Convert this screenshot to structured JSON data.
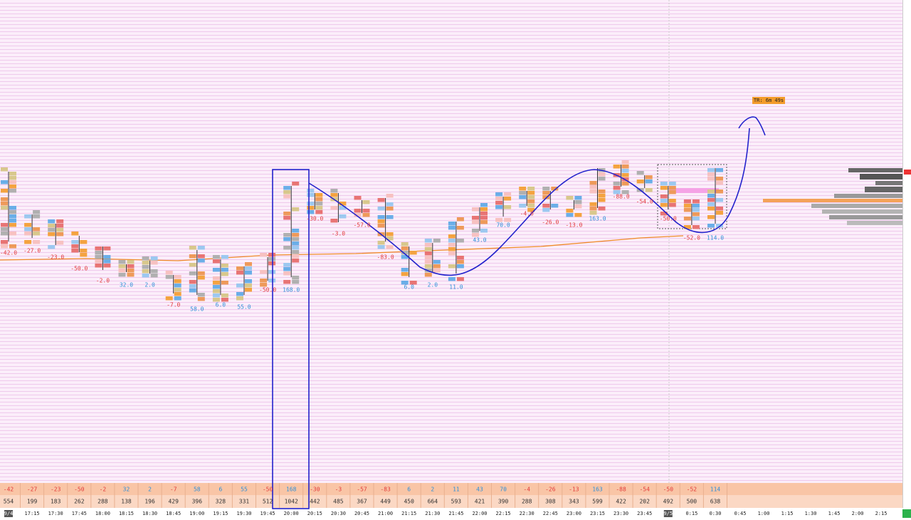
{
  "timer": "TR: 6m 49s",
  "bars": [
    {
      "time": "9/4",
      "delta": "-42",
      "volume": "554",
      "delta_label": "-42.0"
    },
    {
      "time": "17:15",
      "delta": "-27",
      "volume": "199",
      "delta_label": "-27.0"
    },
    {
      "time": "17:30",
      "delta": "-23",
      "volume": "183",
      "delta_label": "-23.0"
    },
    {
      "time": "17:45",
      "delta": "-50",
      "volume": "262",
      "delta_label": "-50.0"
    },
    {
      "time": "18:00",
      "delta": "-2",
      "volume": "288",
      "delta_label": "-2.0"
    },
    {
      "time": "18:15",
      "delta": "32",
      "volume": "138",
      "delta_label": "32.0"
    },
    {
      "time": "18:30",
      "delta": "2",
      "volume": "196",
      "delta_label": "2.0"
    },
    {
      "time": "18:45",
      "delta": "-7",
      "volume": "429",
      "delta_label": "-7.0"
    },
    {
      "time": "19:00",
      "delta": "58",
      "volume": "396",
      "delta_label": "58.0"
    },
    {
      "time": "19:15",
      "delta": "6",
      "volume": "328",
      "delta_label": "6.0"
    },
    {
      "time": "19:30",
      "delta": "55",
      "volume": "331",
      "delta_label": "55.0"
    },
    {
      "time": "19:45",
      "delta": "-50",
      "volume": "512",
      "delta_label": "-50.0"
    },
    {
      "time": "20:00",
      "delta": "168",
      "volume": "1042",
      "delta_label": "168.0"
    },
    {
      "time": "20:15",
      "delta": "-30",
      "volume": "442",
      "delta_label": "-30.0"
    },
    {
      "time": "20:30",
      "delta": "-3",
      "volume": "485",
      "delta_label": "-3.0"
    },
    {
      "time": "20:45",
      "delta": "-57",
      "volume": "367",
      "delta_label": "-57.0"
    },
    {
      "time": "21:00",
      "delta": "-83",
      "volume": "449",
      "delta_label": "-83.0"
    },
    {
      "time": "21:15",
      "delta": "6",
      "volume": "450",
      "delta_label": "6.0"
    },
    {
      "time": "21:30",
      "delta": "2",
      "volume": "664",
      "delta_label": "2.0"
    },
    {
      "time": "21:45",
      "delta": "11",
      "volume": "593",
      "delta_label": "11.0"
    },
    {
      "time": "22:00",
      "delta": "43",
      "volume": "421",
      "delta_label": "43.0"
    },
    {
      "time": "22:15",
      "delta": "70",
      "volume": "390",
      "delta_label": "70.0"
    },
    {
      "time": "22:30",
      "delta": "-4",
      "volume": "288",
      "delta_label": "-4.0"
    },
    {
      "time": "22:45",
      "delta": "-26",
      "volume": "308",
      "delta_label": "-26.0"
    },
    {
      "time": "23:00",
      "delta": "-13",
      "volume": "343",
      "delta_label": "-13.0"
    },
    {
      "time": "23:15",
      "delta": "163",
      "volume": "599",
      "delta_label": "163.0"
    },
    {
      "time": "23:30",
      "delta": "-88",
      "volume": "422",
      "delta_label": "-88.0"
    },
    {
      "time": "23:45",
      "delta": "-54",
      "volume": "202",
      "delta_label": "-54.0"
    },
    {
      "time": "9/5",
      "delta": "-50",
      "volume": "492",
      "delta_label": "-50.0"
    },
    {
      "time": "0:15",
      "delta": "-52",
      "volume": "500",
      "delta_label": "-52.0"
    },
    {
      "time": "0:30",
      "delta": "114",
      "volume": "638",
      "delta_label": "114.0"
    }
  ],
  "future_times": [
    "0:45",
    "1:00",
    "1:15",
    "1:30",
    "1:45",
    "2:00",
    "2:15"
  ]
}
